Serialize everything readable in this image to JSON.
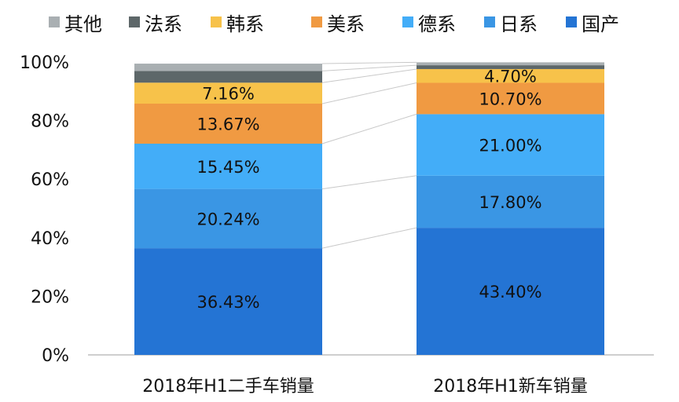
{
  "chart_data": {
    "type": "bar",
    "stacked": true,
    "percent": true,
    "categories": [
      "2018年H1二手车销量",
      "2018年H1新车销量"
    ],
    "series": [
      {
        "name": "国产",
        "color": "#2474d4",
        "values": [
          36.43,
          43.4
        ],
        "labels": [
          "36.43%",
          "43.40%"
        ]
      },
      {
        "name": "日系",
        "color": "#3a96e4",
        "values": [
          20.24,
          17.8
        ],
        "labels": [
          "20.24%",
          "17.80%"
        ]
      },
      {
        "name": "德系",
        "color": "#43adf8",
        "values": [
          15.45,
          21.0
        ],
        "labels": [
          "15.45%",
          "21.00%"
        ]
      },
      {
        "name": "美系",
        "color": "#f09a42",
        "values": [
          13.67,
          10.7
        ],
        "labels": [
          "13.67%",
          "10.70%"
        ]
      },
      {
        "name": "韩系",
        "color": "#f7c24a",
        "values": [
          7.16,
          4.7
        ],
        "labels": [
          "7.16%",
          "4.70%"
        ]
      },
      {
        "name": "法系",
        "color": "#5d6769",
        "values": [
          4.0,
          1.3
        ],
        "labels": [
          "",
          ""
        ]
      },
      {
        "name": "其他",
        "color": "#a9afb2",
        "values": [
          2.5,
          1.0
        ],
        "labels": [
          "",
          ""
        ]
      }
    ],
    "legend_order": [
      "其他",
      "法系",
      "韩系",
      "美系",
      "德系",
      "日系",
      "国产"
    ],
    "yticks": [
      "0%",
      "20%",
      "40%",
      "60%",
      "80%",
      "100%"
    ],
    "ylim": [
      0,
      100
    ],
    "grid": false,
    "legend_position": "top"
  }
}
